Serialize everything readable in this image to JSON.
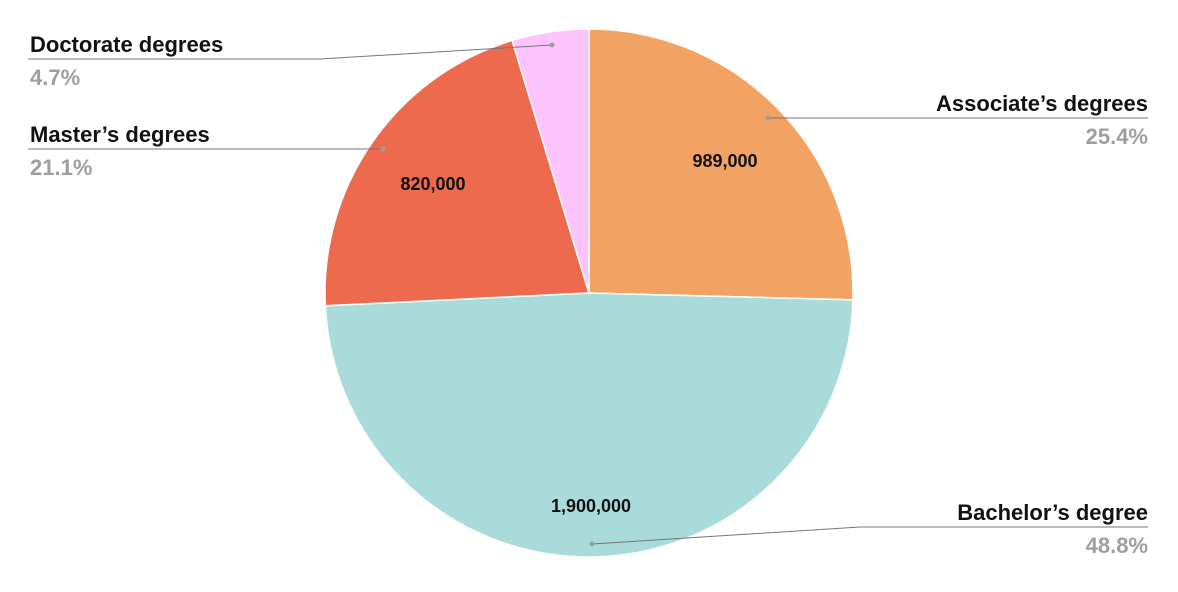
{
  "chart_data": {
    "type": "pie",
    "start_angle_deg": 0,
    "direction": "clockwise",
    "slices": [
      {
        "label": "Associate’s degrees",
        "value": 989000,
        "value_label": "989,000",
        "percent_label": "25.4%",
        "color": "#f2a263"
      },
      {
        "label": "Bachelor’s degree",
        "value": 1900000,
        "value_label": "1,900,000",
        "percent_label": "48.8%",
        "color": "#a9dbdb"
      },
      {
        "label": "Master’s degrees",
        "value": 820000,
        "value_label": "820,000",
        "percent_label": "21.1%",
        "color": "#ed6a4f"
      },
      {
        "label": "Doctorate degrees",
        "value": 183000,
        "value_label": "",
        "percent_label": "4.7%",
        "color": "#fdc3fd"
      }
    ]
  }
}
